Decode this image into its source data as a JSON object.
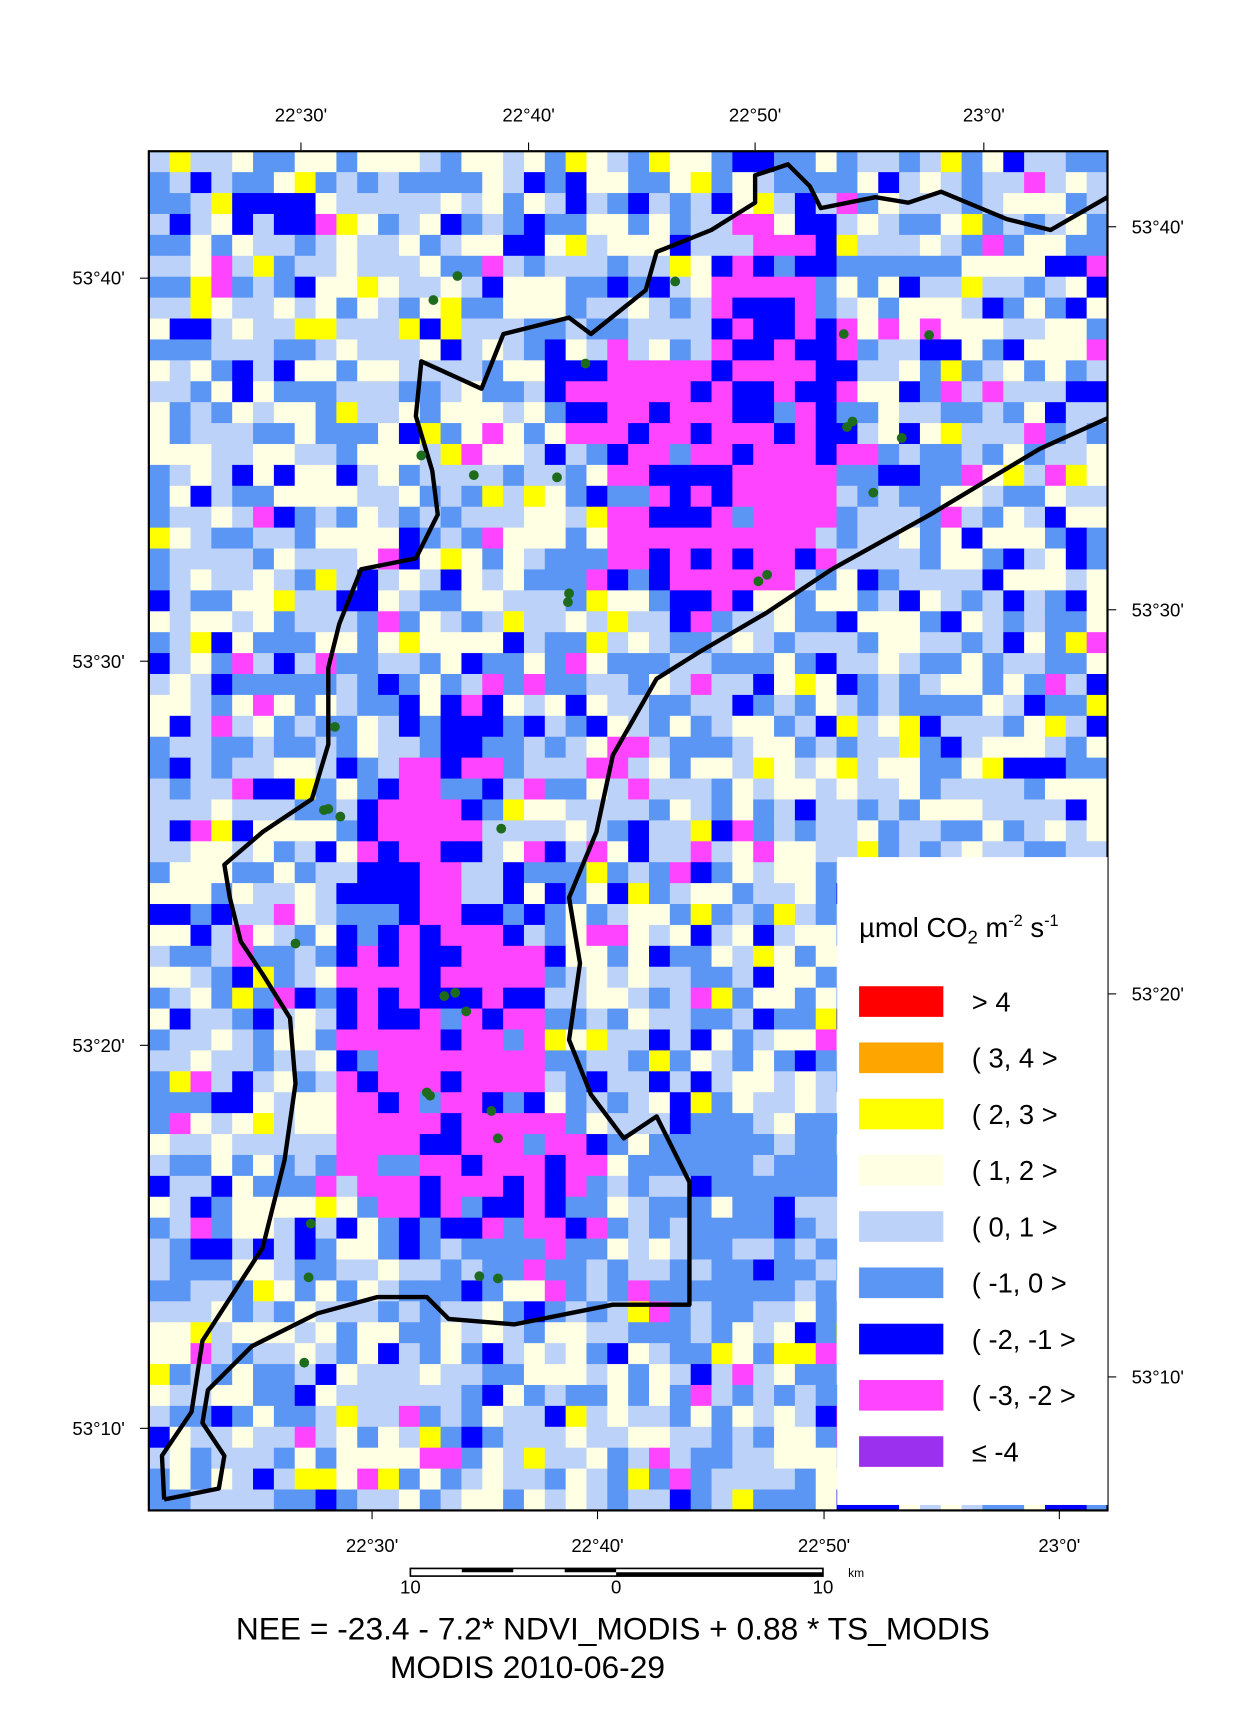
{
  "map": {
    "top_axis": [
      "22°30'",
      "22°40'",
      "22°50'",
      "23°0'"
    ],
    "bottom_axis": [
      "22°30'",
      "22°40'",
      "22°50'",
      "23°0'"
    ],
    "left_axis": [
      "53°40'",
      "53°30'",
      "53°20'",
      "53°10'"
    ],
    "right_axis": [
      "53°40'",
      "53°30'",
      "53°20'",
      "53°10'"
    ],
    "legend": {
      "title": [
        "µmol CO",
        "2",
        " m",
        "-2",
        " s",
        "-1"
      ],
      "items": [
        {
          "label": "> 4",
          "color": "#ff0000"
        },
        {
          "label": "( 3, 4 >",
          "color": "#ffa500"
        },
        {
          "label": "( 2, 3 >",
          "color": "#ffff00"
        },
        {
          "label": "( 1, 2 >",
          "color": "#ffffe4"
        },
        {
          "label": "( 0, 1 >",
          "color": "#bcd2f8"
        },
        {
          "label": "( -1, 0 >",
          "color": "#5b96f5"
        },
        {
          "label": "( -2, -1 >",
          "color": "#0000ff"
        },
        {
          "label": "( -3, -2 >",
          "color": "#ff44ff"
        },
        {
          "label": "≤ -4",
          "color": "#9b30ee"
        }
      ]
    },
    "scale_bar": {
      "labels": [
        "10",
        "0",
        "10"
      ],
      "unit": "km"
    },
    "caption": [
      "NEE = -23.4 - 7.2* NDVI_MODIS + 0.88 * TS_MODIS",
      "MODIS 2010-06-29"
    ]
  }
}
